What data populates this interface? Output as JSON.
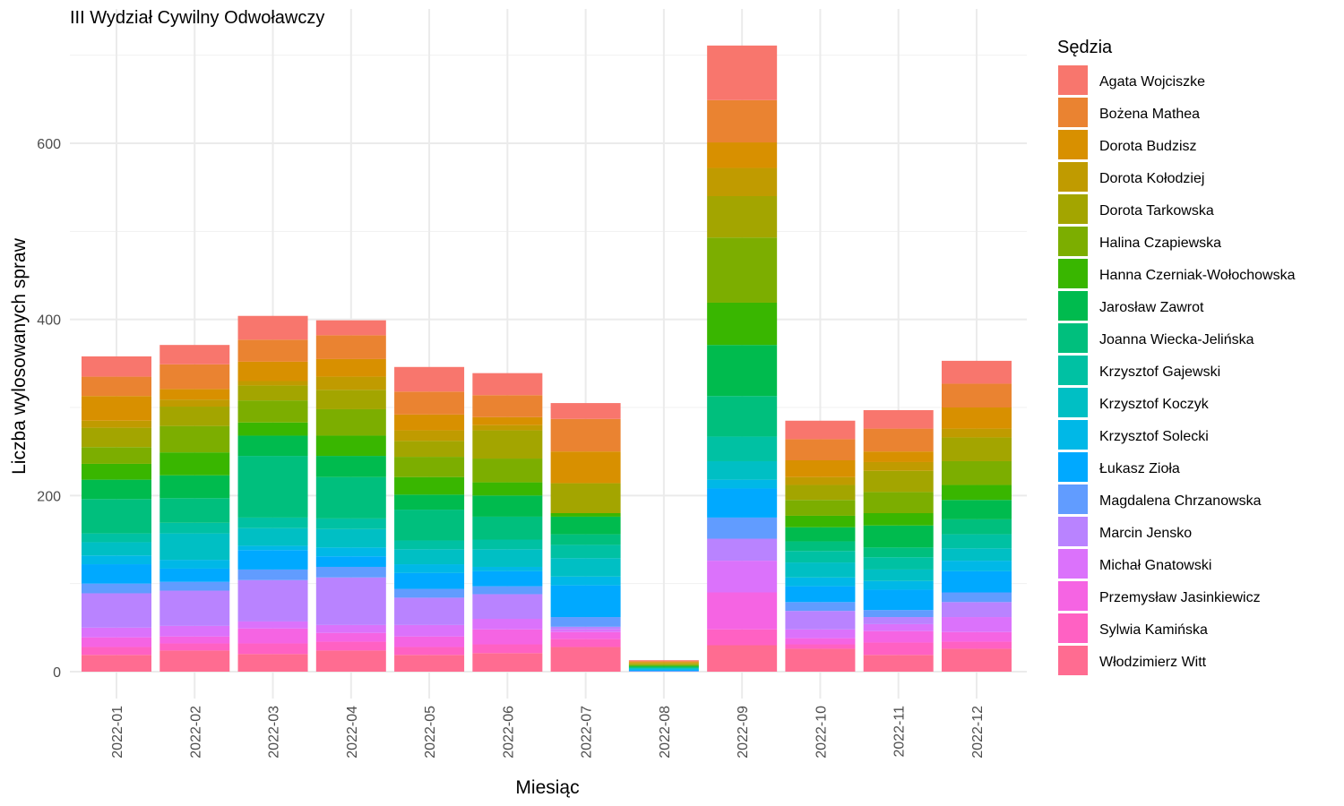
{
  "chart_data": {
    "type": "bar",
    "stacked": true,
    "title": "III Wydział Cywilny Odwoławczy",
    "xlabel": "Miesiąc",
    "ylabel": "Liczba wylosowanych spraw",
    "ylim": [
      0,
      720
    ],
    "yticks": [
      0,
      200,
      400,
      600
    ],
    "grid": true,
    "legend_title": "Sędzia",
    "legend_position": "right",
    "categories": [
      "2022-01",
      "2022-02",
      "2022-03",
      "2022-04",
      "2022-05",
      "2022-06",
      "2022-07",
      "2022-08",
      "2022-09",
      "2022-10",
      "2022-11",
      "2022-12"
    ],
    "series": [
      {
        "name": "Agata Wojciszke",
        "color": "#F8766D",
        "values": [
          23,
          22,
          27,
          17,
          28,
          25,
          18,
          1,
          62,
          21,
          21,
          26
        ]
      },
      {
        "name": "Bożena Mathea",
        "color": "#EA8331",
        "values": [
          22,
          28,
          25,
          27,
          26,
          25,
          37,
          1,
          48,
          24,
          26,
          27
        ]
      },
      {
        "name": "Dorota Budzisz",
        "color": "#D89000",
        "values": [
          28,
          12,
          22,
          20,
          18,
          9,
          36,
          1,
          29,
          19,
          12,
          24
        ]
      },
      {
        "name": "Dorota Kołodziej",
        "color": "#C09B00",
        "values": [
          8,
          8,
          5,
          15,
          12,
          6,
          0,
          1,
          32,
          9,
          10,
          10
        ]
      },
      {
        "name": "Dorota Tarkowska",
        "color": "#A3A500",
        "values": [
          22,
          22,
          17,
          22,
          18,
          32,
          34,
          1,
          47,
          17,
          24,
          27
        ]
      },
      {
        "name": "Halina Czapiewska",
        "color": "#7CAE00",
        "values": [
          19,
          30,
          25,
          30,
          23,
          27,
          0,
          1,
          74,
          18,
          24,
          27
        ]
      },
      {
        "name": "Hanna Czerniak-Wołochowska",
        "color": "#39B600",
        "values": [
          18,
          26,
          15,
          23,
          20,
          15,
          4,
          1,
          48,
          13,
          14,
          17
        ]
      },
      {
        "name": "Jarosław Zawrot",
        "color": "#00BB4E",
        "values": [
          22,
          26,
          23,
          24,
          17,
          24,
          20,
          1,
          58,
          16,
          25,
          22
        ]
      },
      {
        "name": "Joanna Wiecka-Jelińska",
        "color": "#00BF7D",
        "values": [
          39,
          28,
          70,
          47,
          35,
          26,
          12,
          1,
          46,
          11,
          11,
          17
        ]
      },
      {
        "name": "Krzysztof Gajewski",
        "color": "#00C1A3",
        "values": [
          10,
          12,
          12,
          12,
          10,
          11,
          15,
          0,
          28,
          13,
          14,
          16
        ]
      },
      {
        "name": "Krzysztof Koczyk",
        "color": "#00BFC4",
        "values": [
          15,
          30,
          20,
          21,
          17,
          20,
          21,
          1,
          21,
          17,
          13,
          14
        ]
      },
      {
        "name": "Krzysztof Solecki",
        "color": "#00B8E7",
        "values": [
          10,
          10,
          5,
          10,
          10,
          5,
          10,
          1,
          10,
          10,
          10,
          12
        ]
      },
      {
        "name": "Łukasz Zioła",
        "color": "#00A9FF",
        "values": [
          22,
          15,
          22,
          12,
          18,
          17,
          36,
          1,
          33,
          18,
          23,
          24
        ]
      },
      {
        "name": "Magdalena Chrzanowska",
        "color": "#619CFF",
        "values": [
          11,
          10,
          12,
          12,
          10,
          9,
          11,
          1,
          24,
          10,
          8,
          11
        ]
      },
      {
        "name": "Marcin Jensko",
        "color": "#B983FF",
        "values": [
          39,
          40,
          47,
          54,
          31,
          28,
          3,
          0,
          25,
          21,
          8,
          17
        ]
      },
      {
        "name": "Michał Gnatowski",
        "color": "#DB72FB",
        "values": [
          11,
          12,
          8,
          9,
          13,
          12,
          3,
          0,
          36,
          10,
          8,
          17
        ]
      },
      {
        "name": "Przemysław Jasinkiewicz",
        "color": "#F564E3",
        "values": [
          11,
          8,
          17,
          10,
          12,
          17,
          8,
          0,
          42,
          7,
          13,
          11
        ]
      },
      {
        "name": "Sylwia Kamińska",
        "color": "#FF61C3",
        "values": [
          9,
          8,
          12,
          10,
          9,
          10,
          9,
          0,
          18,
          5,
          14,
          8
        ]
      },
      {
        "name": "Włodzimierz Witt",
        "color": "#FF6C91",
        "values": [
          19,
          24,
          20,
          24,
          19,
          21,
          28,
          0,
          30,
          26,
          19,
          26
        ]
      }
    ]
  }
}
